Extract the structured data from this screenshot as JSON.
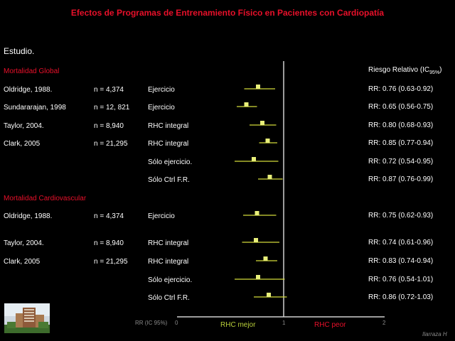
{
  "title": "Efectos de Programas de Entrenamiento Físico en Pacientes con Cardiopatía",
  "estudio_label": "Estudio.",
  "rr_header": {
    "main": "Riesgo Relativo (IC",
    "sub": "95%",
    "close": ")"
  },
  "colors": {
    "title_red": "#e8102a",
    "marker": "#e8ef7a",
    "ci_line": "#d4db3a",
    "axis": "#cfcfcf"
  },
  "chart_data": {
    "type": "forest",
    "x_range": [
      0,
      2
    ],
    "x_ticks": [
      "0",
      "1",
      "2"
    ],
    "axis_label": "RR (IC 95%)",
    "favors_left": "RHC mejor",
    "favors_right": "RHC peor",
    "sections": [
      {
        "name": "Mortalidad Global",
        "rows": [
          {
            "study": "Oldridge, 1988.",
            "n": "n = 4,374",
            "intervention": "Ejercicio",
            "rr_text": "RR: 0.76 (0.63-0.92)",
            "rr": 0.76,
            "lo": 0.63,
            "hi": 0.92
          },
          {
            "study": "Sundararajan, 1998",
            "n": "n = 12, 821",
            "intervention": "Ejercicio",
            "rr_text": "RR: 0.65 (0.56-0.75)",
            "rr": 0.65,
            "lo": 0.56,
            "hi": 0.75
          },
          {
            "study": "Taylor,  2004.",
            "n": "n = 8,940",
            "intervention": "RHC integral",
            "rr_text": "RR: 0.80 (0.68-0.93)",
            "rr": 0.8,
            "lo": 0.68,
            "hi": 0.93
          },
          {
            "study": "Clark, 2005",
            "n": "n = 21,295",
            "intervention": "RHC integral",
            "rr_text": "RR: 0.85 (0.77-0.94)",
            "rr": 0.85,
            "lo": 0.77,
            "hi": 0.94
          },
          {
            "study": "",
            "n": "",
            "intervention": "Sólo ejercicio.",
            "rr_text": "RR: 0.72 (0.54-0.95)",
            "rr": 0.72,
            "lo": 0.54,
            "hi": 0.95
          },
          {
            "study": "",
            "n": "",
            "intervention": "Sólo Ctrl F.R.",
            "rr_text": "RR: 0.87 (0.76-0.99)",
            "rr": 0.87,
            "lo": 0.76,
            "hi": 0.99
          }
        ]
      },
      {
        "name": "Mortalidad Cardiovascular",
        "rows": [
          {
            "study": "Oldridge, 1988.",
            "n": "n = 4,374",
            "intervention": "Ejercicio",
            "rr_text": "RR: 0.75 (0.62-0.93)",
            "rr": 0.75,
            "lo": 0.62,
            "hi": 0.93
          },
          {
            "study": "Taylor,  2004.",
            "n": "n = 8,940",
            "intervention": "RHC integral",
            "rr_text": "RR: 0.74 (0.61-0.96)",
            "rr": 0.74,
            "lo": 0.61,
            "hi": 0.96
          },
          {
            "study": "Clark, 2005",
            "n": "n = 21,295",
            "intervention": "RHC integral",
            "rr_text": "RR: 0.83 (0.74-0.94)",
            "rr": 0.83,
            "lo": 0.74,
            "hi": 0.94
          },
          {
            "study": "",
            "n": "",
            "intervention": "Sólo ejercicio.",
            "rr_text": "RR: 0.76 (0.54-1.01)",
            "rr": 0.76,
            "lo": 0.54,
            "hi": 1.01
          },
          {
            "study": "",
            "n": "",
            "intervention": "Sólo Ctrl F.R.",
            "rr_text": "RR: 0.86 (0.72-1.03)",
            "rr": 0.86,
            "lo": 0.72,
            "hi": 1.03
          }
        ]
      }
    ]
  },
  "author": "Ilarraza H",
  "logo_icon": "hospital-building-photo"
}
